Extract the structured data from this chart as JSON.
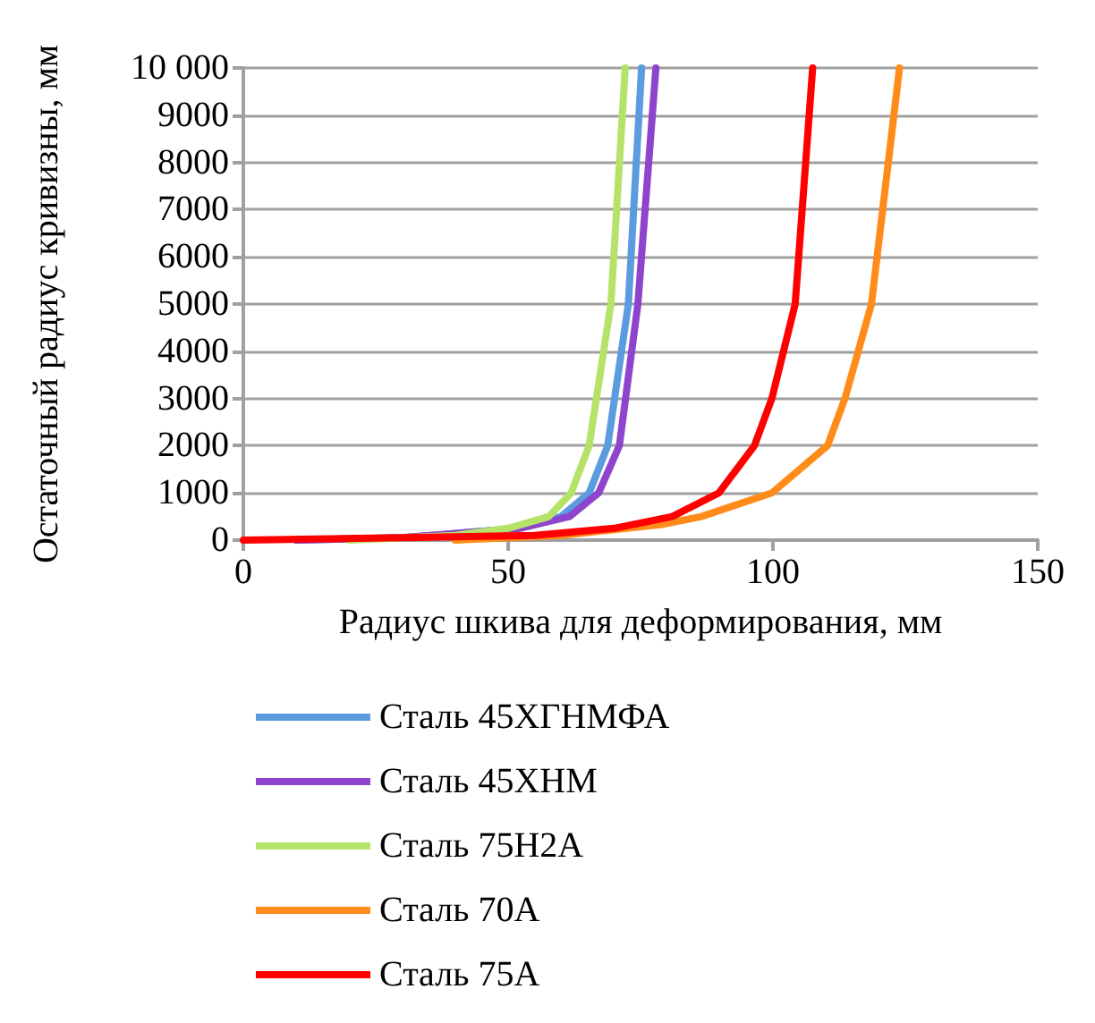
{
  "chart_data": {
    "type": "line",
    "xlabel": "Радиус шкива для деформирования, мм",
    "ylabel": "Остаточный радиус кривизны, мм",
    "xlim": [
      0,
      150
    ],
    "xticks": [
      0,
      50,
      100,
      150
    ],
    "ylim": [
      0,
      10000
    ],
    "yticks": [
      0,
      1000,
      2000,
      3000,
      4000,
      5000,
      6000,
      7000,
      8000,
      9000,
      {
        "value": 10000,
        "label": "10 000"
      }
    ],
    "grid": "y",
    "legend": "bottom",
    "marker": "none",
    "line_style": "solid",
    "series": [
      {
        "name": "Сталь 45ХГНМФА",
        "color": "#5b9be0",
        "x": [
          10,
          30,
          52,
          60,
          65.3,
          68.8,
          72.7,
          75.2
        ],
        "values": [
          0,
          50,
          250,
          500,
          1000,
          2000,
          5000,
          10000
        ]
      },
      {
        "name": "Сталь 45ХНМ",
        "color": "#8e44cc",
        "x": [
          10,
          30,
          52.2,
          61.6,
          67.1,
          71,
          74.5,
          77.9
        ],
        "values": [
          0,
          50,
          250,
          500,
          1000,
          2000,
          5000,
          10000
        ]
      },
      {
        "name": "Сталь 75Н2А",
        "color": "#b5e36a",
        "x": [
          20,
          40,
          50,
          57.7,
          61.9,
          65.3,
          69.4,
          72.1
        ],
        "values": [
          0,
          100,
          250,
          500,
          1000,
          2000,
          5000,
          10000
        ]
      },
      {
        "name": "Сталь 70А",
        "color": "#ff8c1a",
        "x": [
          40,
          60,
          79,
          86.5,
          99.8,
          110.3,
          113.6,
          118.6,
          123.9
        ],
        "values": [
          0,
          100,
          330,
          500,
          1000,
          2000,
          3000,
          5000,
          10000
        ]
      },
      {
        "name": "Сталь 75А",
        "color": "#ff0000",
        "x": [
          0,
          30,
          55,
          70,
          81,
          89.8,
          96.5,
          99.8,
          104.2,
          107.5
        ],
        "values": [
          0,
          50,
          100,
          250,
          500,
          1000,
          2000,
          3000,
          5000,
          10000
        ]
      }
    ]
  }
}
